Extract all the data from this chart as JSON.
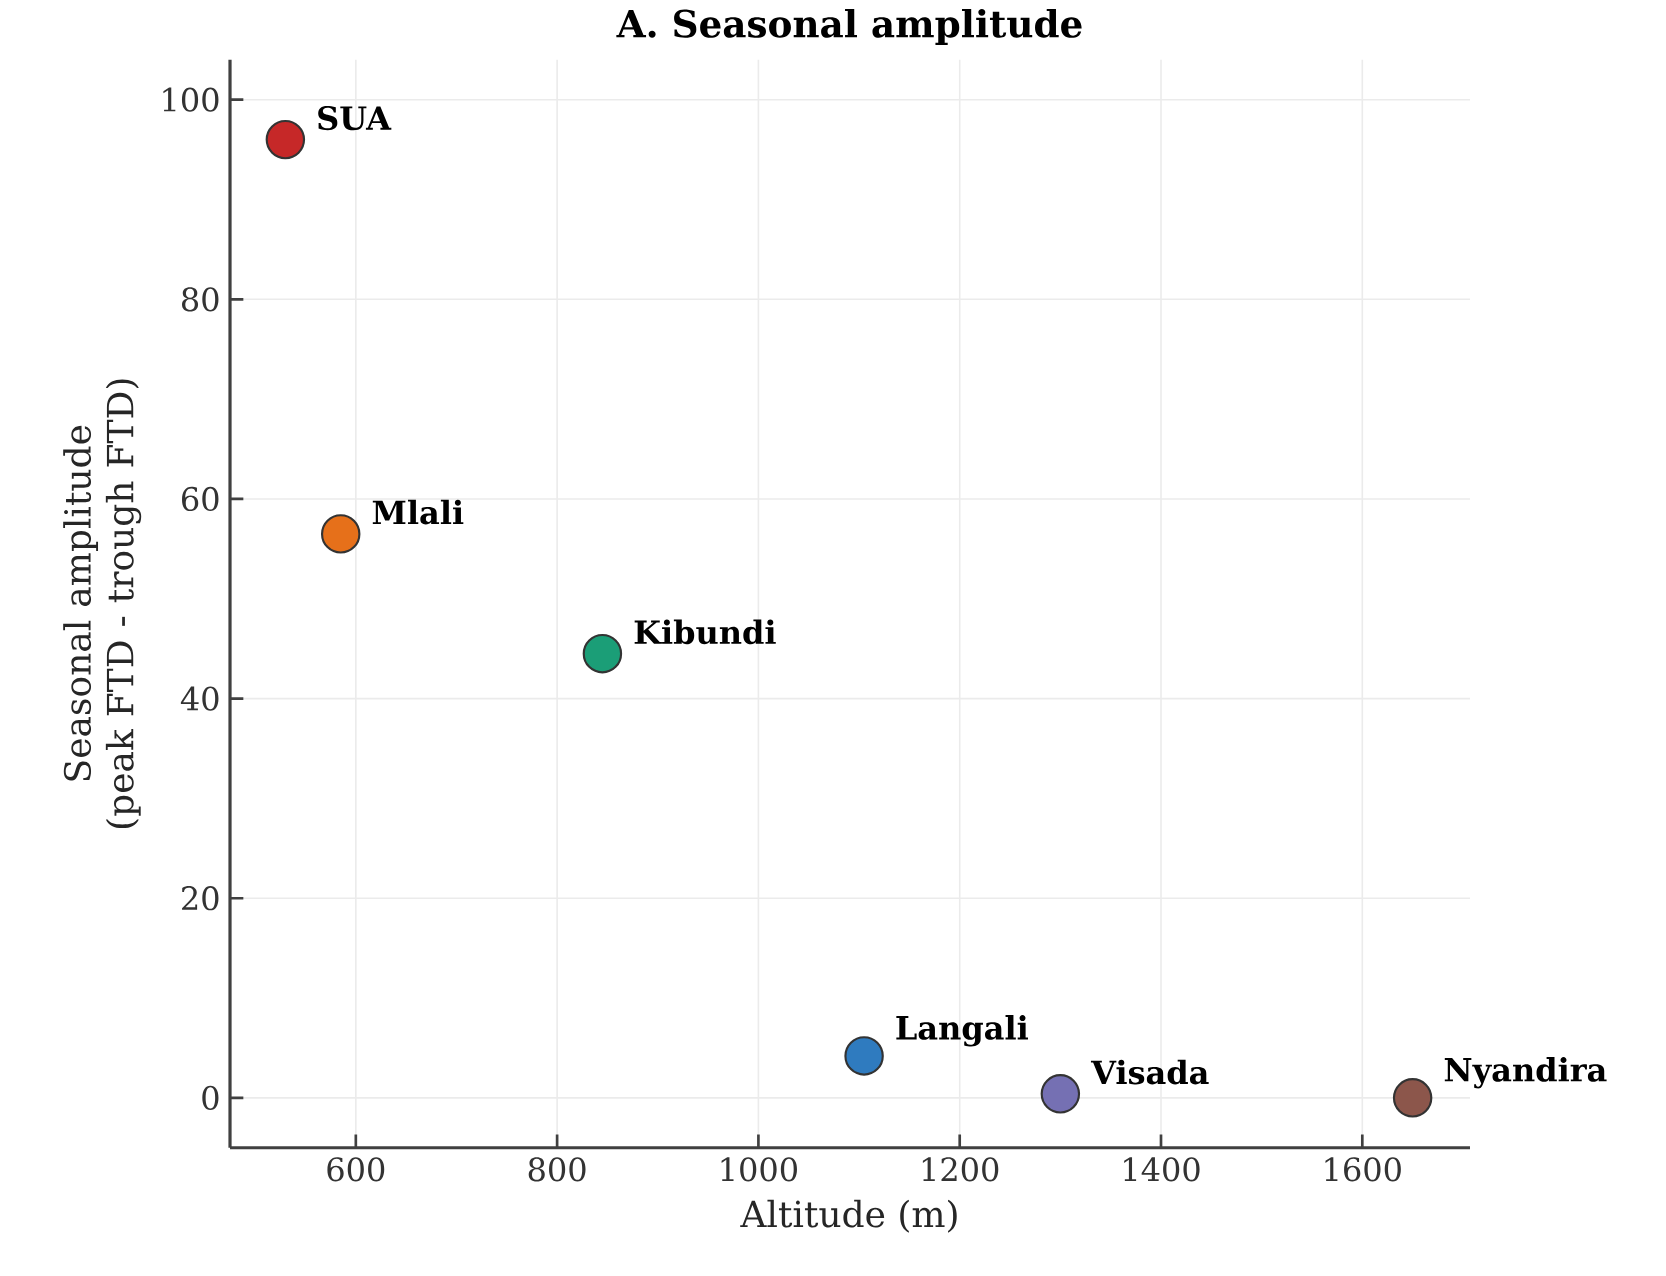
{
  "chart_data": {
    "type": "scatter",
    "title": "A. Seasonal amplitude",
    "xlabel": "Altitude (m)",
    "ylabel": "Seasonal amplitude (peak FTD - trough FTD)",
    "x": [
      530,
      585,
      845,
      1105,
      1300,
      1650
    ],
    "values": [
      96,
      56.5,
      44.5,
      4.2,
      0.4,
      0
    ],
    "colors": [
      "#c62828",
      "#e6701a",
      "#1b9e77",
      "#2f7bbf",
      "#7570b3",
      "#8c564b"
    ],
    "annotations": [
      {
        "text": "SUA",
        "x": 530,
        "y": 96
      },
      {
        "text": "Mlali",
        "x": 585,
        "y": 56.5
      },
      {
        "text": "Kibundi",
        "x": 845,
        "y": 44.5
      },
      {
        "text": "Langali",
        "x": 1105,
        "y": 4.2
      },
      {
        "text": "Visada",
        "x": 1300,
        "y": 0.4
      },
      {
        "text": "Nyandira",
        "x": 1650,
        "y": 0
      }
    ],
    "xlim": [
      475,
      1707
    ],
    "ylim": [
      -5,
      104
    ],
    "xticks": [
      600,
      800,
      1000,
      1200,
      1400,
      1600
    ],
    "yticks": [
      0,
      20,
      40,
      60,
      80,
      100
    ],
    "grid": true
  }
}
